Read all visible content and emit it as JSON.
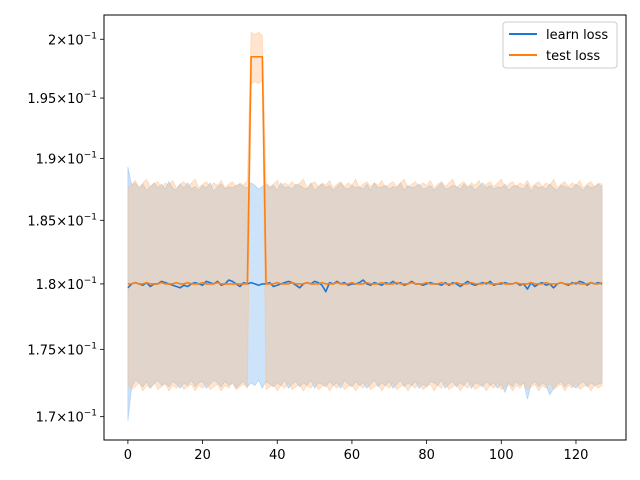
{
  "chart_data": {
    "type": "line",
    "title": "",
    "xlabel": "",
    "ylabel": "",
    "xlim": [
      -6.4,
      133.4
    ],
    "ylim": [
      0.1683,
      0.2021
    ],
    "yscale": "log",
    "grid": false,
    "legend_position": "top-right",
    "x_ticks": [
      0,
      20,
      40,
      60,
      80,
      100,
      120
    ],
    "x_tick_labels": [
      "0",
      "20",
      "40",
      "60",
      "80",
      "100",
      "120"
    ],
    "y_ticks": [
      0.17,
      0.175,
      0.18,
      0.185,
      0.19,
      0.195,
      0.2
    ],
    "y_tick_labels": [
      {
        "mantissa": "1.7",
        "times": "×10",
        "exp": "−1"
      },
      {
        "mantissa": "1.75",
        "times": "×10",
        "exp": "−1"
      },
      {
        "mantissa": "1.8",
        "times": "×10",
        "exp": "−1"
      },
      {
        "mantissa": "1.85",
        "times": "×10",
        "exp": "−1"
      },
      {
        "mantissa": "1.9",
        "times": "×10",
        "exp": "−1"
      },
      {
        "mantissa": "1.95",
        "times": "×10",
        "exp": "−1"
      },
      {
        "mantissa": "2",
        "times": "×10",
        "exp": "−1"
      }
    ],
    "series": [
      {
        "name": "learn loss",
        "color": "#1f77d4",
        "band_color": "#7fbaf0",
        "x_range": [
          0,
          127
        ],
        "mean": [
          0.1797,
          0.18,
          0.1801,
          0.18,
          0.1799,
          0.1801,
          0.1798,
          0.18,
          0.18,
          0.1802,
          0.1801,
          0.18,
          0.1799,
          0.1798,
          0.1797,
          0.1799,
          0.1798,
          0.18,
          0.1801,
          0.18,
          0.1799,
          0.1802,
          0.1801,
          0.18,
          0.1802,
          0.1799,
          0.18,
          0.1803,
          0.1802,
          0.18,
          0.1798,
          0.1801,
          0.18,
          0.1801,
          0.18,
          0.1799,
          0.18,
          0.18,
          0.1801,
          0.1798,
          0.1799,
          0.18,
          0.1801,
          0.1802,
          0.1801,
          0.1799,
          0.1797,
          0.18,
          0.1801,
          0.18,
          0.1802,
          0.1801,
          0.1799,
          0.1794,
          0.1801,
          0.18,
          0.1802,
          0.18,
          0.1801,
          0.1799,
          0.18,
          0.18,
          0.1801,
          0.1803,
          0.18,
          0.1799,
          0.1801,
          0.18,
          0.1799,
          0.1801,
          0.18,
          0.1802,
          0.18,
          0.1801,
          0.1799,
          0.18,
          0.1802,
          0.18,
          0.18,
          0.1799,
          0.18,
          0.1801,
          0.18,
          0.18,
          0.1799,
          0.1801,
          0.1799,
          0.1801,
          0.18,
          0.1798,
          0.18,
          0.1802,
          0.18,
          0.1799,
          0.18,
          0.1801,
          0.18,
          0.1802,
          0.1799,
          0.18,
          0.18,
          0.1801,
          0.18,
          0.18,
          0.1801,
          0.1799,
          0.18,
          0.1796,
          0.1801,
          0.1798,
          0.18,
          0.1801,
          0.1799,
          0.18,
          0.1797,
          0.18,
          0.1801,
          0.18,
          0.1799,
          0.1801,
          0.18,
          0.1802,
          0.1801,
          0.1799,
          0.1801,
          0.18,
          0.1801,
          0.18
        ],
        "upper": [
          0.1893,
          0.1878,
          0.188,
          0.1876,
          0.1879,
          0.1874,
          0.1877,
          0.188,
          0.1876,
          0.1879,
          0.1875,
          0.1881,
          0.1876,
          0.1874,
          0.1879,
          0.1876,
          0.188,
          0.1875,
          0.1877,
          0.1874,
          0.1878,
          0.1876,
          0.188,
          0.1873,
          0.1877,
          0.1879,
          0.1875,
          0.1877,
          0.1876,
          0.1878,
          0.1879,
          0.1877,
          0.1876,
          0.188,
          0.1878,
          0.1875,
          0.1877,
          0.1879,
          0.1876,
          0.1878,
          0.1874,
          0.188,
          0.1876,
          0.1877,
          0.1875,
          0.1879,
          0.1878,
          0.1876,
          0.1875,
          0.188,
          0.1874,
          0.1877,
          0.1879,
          0.1876,
          0.1878,
          0.1874,
          0.1877,
          0.188,
          0.1876,
          0.1875,
          0.1878,
          0.1876,
          0.1877,
          0.1875,
          0.1879,
          0.1874,
          0.188,
          0.1876,
          0.1877,
          0.1878,
          0.1875,
          0.1877,
          0.1876,
          0.188,
          0.1874,
          0.1878,
          0.1876,
          0.1877,
          0.1879,
          0.1875,
          0.1876,
          0.1878,
          0.1874,
          0.1877,
          0.188,
          0.1875,
          0.1876,
          0.1878,
          0.1877,
          0.1875,
          0.1879,
          0.1876,
          0.1878,
          0.1874,
          0.1877,
          0.188,
          0.1876,
          0.1878,
          0.1875,
          0.1877,
          0.1876,
          0.1879,
          0.1874,
          0.1877,
          0.1878,
          0.1876,
          0.1875,
          0.1879,
          0.1873,
          0.1878,
          0.1876,
          0.1877,
          0.1875,
          0.1879,
          0.1876,
          0.1874,
          0.1878,
          0.1877,
          0.1876,
          0.1875,
          0.1879,
          0.1877,
          0.1874,
          0.1878,
          0.1876,
          0.1877,
          0.1879,
          0.1877
        ],
        "lower": [
          0.1697,
          0.1722,
          0.1727,
          0.1725,
          0.1722,
          0.1726,
          0.1721,
          0.1724,
          0.1727,
          0.1723,
          0.1725,
          0.1722,
          0.1726,
          0.1724,
          0.1721,
          0.1725,
          0.1723,
          0.1727,
          0.1722,
          0.1725,
          0.1726,
          0.1721,
          0.1724,
          0.1727,
          0.1725,
          0.1722,
          0.1726,
          0.1723,
          0.1725,
          0.1721,
          0.1724,
          0.1726,
          0.1722,
          0.1725,
          0.1723,
          0.1727,
          0.1721,
          0.1726,
          0.1724,
          0.1722,
          0.1725,
          0.1723,
          0.1727,
          0.1721,
          0.1724,
          0.1726,
          0.1722,
          0.1725,
          0.1723,
          0.1727,
          0.1721,
          0.1725,
          0.1724,
          0.1722,
          0.1726,
          0.1723,
          0.1725,
          0.1721,
          0.1727,
          0.1724,
          0.1722,
          0.1726,
          0.1723,
          0.1725,
          0.1721,
          0.1724,
          0.1727,
          0.1722,
          0.1725,
          0.1723,
          0.1726,
          0.1721,
          0.1724,
          0.1727,
          0.1722,
          0.1725,
          0.1723,
          0.1726,
          0.1721,
          0.1724,
          0.1722,
          0.1726,
          0.1725,
          0.1723,
          0.1727,
          0.1721,
          0.1724,
          0.1726,
          0.1722,
          0.1725,
          0.1723,
          0.1727,
          0.1721,
          0.1725,
          0.1724,
          0.1722,
          0.1726,
          0.1723,
          0.1725,
          0.1721,
          0.1724,
          0.1718,
          0.1725,
          0.1722,
          0.1726,
          0.1723,
          0.1725,
          0.1713,
          0.1724,
          0.1726,
          0.1722,
          0.1725,
          0.1723,
          0.1716,
          0.1721,
          0.1724,
          0.1726,
          0.1722,
          0.1725,
          0.1723,
          0.1721,
          0.1724,
          0.1726,
          0.1722,
          0.1725,
          0.1723,
          0.1724,
          0.1725
        ]
      },
      {
        "name": "test loss",
        "color": "#ff7f0e",
        "band_color": "#ffbf86",
        "x_range": [
          0,
          127
        ],
        "spike": {
          "start": 33,
          "end": 36,
          "mean": 0.1985,
          "upper": 0.2006,
          "lower": 0.1962
        },
        "mean": [
          0.18,
          0.18,
          0.1801,
          0.18,
          0.18,
          0.1801,
          0.18,
          0.18,
          0.18,
          0.1801,
          0.18,
          0.18,
          0.18,
          0.1801,
          0.18,
          0.18,
          0.1801,
          0.18,
          0.18,
          0.18,
          0.1801,
          0.18,
          0.18,
          0.18,
          0.1801,
          0.18,
          0.18,
          0.18,
          0.18,
          0.18,
          0.18,
          0.18,
          0.18,
          0.1985,
          0.1985,
          0.1985,
          0.1985,
          0.18,
          0.18,
          0.18,
          0.1801,
          0.18,
          0.18,
          0.18,
          0.1801,
          0.18,
          0.18,
          0.18,
          0.1801,
          0.18,
          0.18,
          0.18,
          0.1801,
          0.18,
          0.18,
          0.18,
          0.1801,
          0.18,
          0.18,
          0.18,
          0.1801,
          0.18,
          0.18,
          0.18,
          0.1801,
          0.18,
          0.18,
          0.18,
          0.1801,
          0.18,
          0.18,
          0.18,
          0.1801,
          0.18,
          0.18,
          0.18,
          0.1801,
          0.18,
          0.18,
          0.18,
          0.1801,
          0.18,
          0.18,
          0.18,
          0.1801,
          0.18,
          0.18,
          0.18,
          0.1801,
          0.18,
          0.18,
          0.18,
          0.1801,
          0.18,
          0.18,
          0.18,
          0.1801,
          0.18,
          0.18,
          0.18,
          0.1801,
          0.18,
          0.18,
          0.18,
          0.1801,
          0.18,
          0.18,
          0.18,
          0.1801,
          0.18,
          0.18,
          0.18,
          0.1801,
          0.18,
          0.18,
          0.18,
          0.1801,
          0.18,
          0.18,
          0.18,
          0.1801,
          0.18,
          0.18,
          0.18,
          0.1801,
          0.18,
          0.18,
          0.1801
        ],
        "upper": [
          0.1876,
          0.1879,
          0.1882,
          0.1876,
          0.188,
          0.1883,
          0.1877,
          0.1879,
          0.1881,
          0.1876,
          0.188,
          0.1878,
          0.1882,
          0.1876,
          0.1879,
          0.1881,
          0.1877,
          0.188,
          0.1883,
          0.1876,
          0.1879,
          0.1881,
          0.1877,
          0.188,
          0.1878,
          0.1882,
          0.1876,
          0.1879,
          0.1881,
          0.1877,
          0.188,
          0.1878,
          0.1882,
          0.2006,
          0.2004,
          0.2006,
          0.2003,
          0.188,
          0.1877,
          0.1879,
          0.1882,
          0.1876,
          0.188,
          0.1878,
          0.1881,
          0.1877,
          0.188,
          0.1883,
          0.1876,
          0.1879,
          0.1881,
          0.1877,
          0.188,
          0.1878,
          0.1882,
          0.1876,
          0.1879,
          0.1881,
          0.1877,
          0.188,
          0.1878,
          0.1883,
          0.1876,
          0.1879,
          0.1881,
          0.1877,
          0.188,
          0.1878,
          0.1882,
          0.1876,
          0.1879,
          0.1881,
          0.1877,
          0.188,
          0.1883,
          0.1876,
          0.1879,
          0.1881,
          0.1877,
          0.188,
          0.1878,
          0.1882,
          0.1876,
          0.1879,
          0.1881,
          0.1877,
          0.188,
          0.1883,
          0.1876,
          0.1879,
          0.1881,
          0.1877,
          0.188,
          0.1878,
          0.1882,
          0.1876,
          0.1879,
          0.1881,
          0.1877,
          0.188,
          0.1883,
          0.1876,
          0.1879,
          0.1881,
          0.1877,
          0.188,
          0.1878,
          0.1882,
          0.1876,
          0.1879,
          0.1881,
          0.1877,
          0.188,
          0.1878,
          0.1883,
          0.1876,
          0.1879,
          0.1881,
          0.1877,
          0.188,
          0.1878,
          0.1882,
          0.1876,
          0.1879,
          0.1881,
          0.1877,
          0.188,
          0.1879
        ],
        "lower": [
          0.1724,
          0.172,
          0.1722,
          0.1725,
          0.1719,
          0.1723,
          0.1721,
          0.1726,
          0.172,
          0.1722,
          0.1724,
          0.1719,
          0.1723,
          0.1721,
          0.1725,
          0.172,
          0.1722,
          0.1724,
          0.1719,
          0.1723,
          0.1721,
          0.1725,
          0.172,
          0.1722,
          0.1724,
          0.1719,
          0.1723,
          0.1721,
          0.1725,
          0.172,
          0.1722,
          0.1724,
          0.1721,
          0.1962,
          0.1964,
          0.1962,
          0.1965,
          0.172,
          0.1722,
          0.1724,
          0.1719,
          0.1723,
          0.1721,
          0.1725,
          0.172,
          0.1722,
          0.1724,
          0.1719,
          0.1723,
          0.1721,
          0.1725,
          0.172,
          0.1722,
          0.1724,
          0.1719,
          0.1723,
          0.1721,
          0.1725,
          0.172,
          0.1722,
          0.1724,
          0.1719,
          0.1723,
          0.1721,
          0.1725,
          0.172,
          0.1722,
          0.1724,
          0.1719,
          0.1723,
          0.1721,
          0.1725,
          0.172,
          0.1722,
          0.1724,
          0.1719,
          0.1723,
          0.1721,
          0.1725,
          0.172,
          0.1722,
          0.1724,
          0.1719,
          0.1723,
          0.1721,
          0.1725,
          0.172,
          0.1722,
          0.1724,
          0.1719,
          0.1723,
          0.1721,
          0.1725,
          0.172,
          0.1722,
          0.1724,
          0.1719,
          0.1723,
          0.1721,
          0.1725,
          0.172,
          0.1722,
          0.1724,
          0.1719,
          0.1723,
          0.1721,
          0.1725,
          0.172,
          0.1722,
          0.1724,
          0.1719,
          0.1723,
          0.1721,
          0.1725,
          0.172,
          0.1722,
          0.1724,
          0.1719,
          0.1723,
          0.1721,
          0.1725,
          0.172,
          0.1722,
          0.1724,
          0.1719,
          0.1723,
          0.1721,
          0.1723
        ]
      }
    ]
  }
}
